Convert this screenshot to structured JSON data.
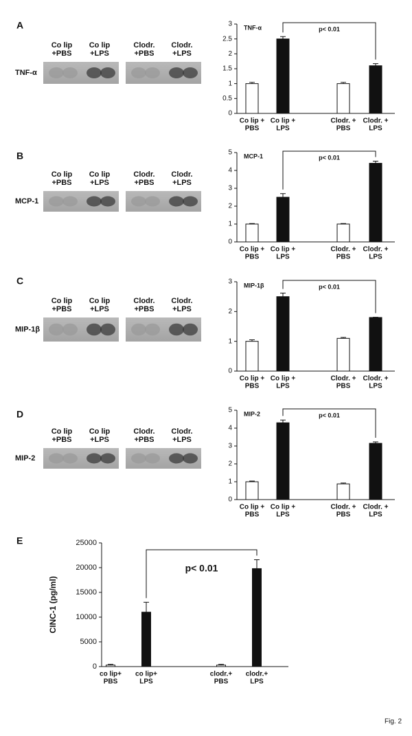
{
  "figure_label": "Fig. 2",
  "panels": [
    {
      "label": "A",
      "blot": {
        "row_label": "TNF-α",
        "columns": [
          [
            "Co lip",
            "+PBS"
          ],
          [
            "Co lip",
            "+LPS"
          ],
          [
            "Clodr.",
            "+PBS"
          ],
          [
            "Clodr.",
            "+LPS"
          ]
        ]
      }
    },
    {
      "label": "B",
      "blot": {
        "row_label": "MCP-1",
        "columns": [
          [
            "Co lip",
            "+PBS"
          ],
          [
            "Co lip",
            "+LPS"
          ],
          [
            "Clodr.",
            "+PBS"
          ],
          [
            "Clodr.",
            "+LPS"
          ]
        ]
      }
    },
    {
      "label": "C",
      "blot": {
        "row_label": "MIP-1β",
        "columns": [
          [
            "Co lip",
            "+PBS"
          ],
          [
            "Co lip",
            "+LPS"
          ],
          [
            "Clodr.",
            "+PBS"
          ],
          [
            "Clodr.",
            "+LPS"
          ]
        ]
      }
    },
    {
      "label": "D",
      "blot": {
        "row_label": "MIP-2",
        "columns": [
          [
            "Co lip",
            "+PBS"
          ],
          [
            "Co lip",
            "+LPS"
          ],
          [
            "Clodr.",
            "+PBS"
          ],
          [
            "Clodr.",
            "+LPS"
          ]
        ]
      }
    },
    {
      "label": "E"
    }
  ],
  "chart_data": [
    {
      "type": "bar",
      "title": "TNF-α",
      "annotation": "p< 0.01",
      "categories": [
        [
          "Co lip +",
          "PBS"
        ],
        [
          "Co lip +",
          "LPS"
        ],
        [
          "Clodr. +",
          "PBS"
        ],
        [
          "Clodr. +",
          "LPS"
        ]
      ],
      "values": [
        1,
        2.5,
        1,
        1.6
      ],
      "errors": [
        0.04,
        0.08,
        0.04,
        0.07
      ],
      "colors": [
        "#ffffff",
        "#111111",
        "#ffffff",
        "#111111"
      ],
      "ylim": [
        0,
        3
      ],
      "yticks": [
        0,
        0.5,
        1,
        1.5,
        2,
        2.5,
        3
      ]
    },
    {
      "type": "bar",
      "title": "MCP-1",
      "annotation": "p< 0.01",
      "categories": [
        [
          "Co lip +",
          "PBS"
        ],
        [
          "Co lip +",
          "LPS"
        ],
        [
          "Clodr. +",
          "PBS"
        ],
        [
          "Clodr. +",
          "LPS"
        ]
      ],
      "values": [
        1,
        2.5,
        1,
        4.4
      ],
      "errors": [
        0.03,
        0.2,
        0.03,
        0.12
      ],
      "colors": [
        "#ffffff",
        "#111111",
        "#ffffff",
        "#111111"
      ],
      "ylim": [
        0,
        5
      ],
      "yticks": [
        0,
        1,
        2,
        3,
        4,
        5
      ]
    },
    {
      "type": "bar",
      "title": "MIP-1β",
      "annotation": "p< 0.01",
      "categories": [
        [
          "Co lip +",
          "PBS"
        ],
        [
          "Co lip +",
          "LPS"
        ],
        [
          "Clodr. +",
          "PBS"
        ],
        [
          "Clodr. +",
          "LPS"
        ]
      ],
      "values": [
        1,
        2.5,
        1.1,
        1.8
      ],
      "errors": [
        0.05,
        0.12,
        0.03,
        0.01
      ],
      "colors": [
        "#ffffff",
        "#111111",
        "#ffffff",
        "#111111"
      ],
      "ylim": [
        0,
        3
      ],
      "yticks": [
        0,
        1,
        2,
        3
      ]
    },
    {
      "type": "bar",
      "title": "MIP-2",
      "annotation": "p< 0.01",
      "categories": [
        [
          "Co lip +",
          "PBS"
        ],
        [
          "Co lip +",
          "LPS"
        ],
        [
          "Clodr. +",
          "PBS"
        ],
        [
          "Clodr. +",
          "LPS"
        ]
      ],
      "values": [
        1,
        4.3,
        0.88,
        3.15
      ],
      "errors": [
        0.04,
        0.15,
        0.05,
        0.08
      ],
      "colors": [
        "#ffffff",
        "#111111",
        "#ffffff",
        "#111111"
      ],
      "ylim": [
        0,
        5
      ],
      "yticks": [
        0,
        1,
        2,
        3,
        4,
        5
      ]
    },
    {
      "type": "bar",
      "annotation": "p< 0.01",
      "y_label": "CINC-1  (pg/ml)",
      "categories": [
        [
          "co lip+",
          "PBS"
        ],
        [
          "co lip+",
          "LPS"
        ],
        [
          "clodr.+",
          "PBS"
        ],
        [
          "clodr.+",
          "LPS"
        ]
      ],
      "values": [
        300,
        11000,
        300,
        19800
      ],
      "errors": [
        150,
        2000,
        150,
        1800
      ],
      "colors": [
        "#ffffff",
        "#111111",
        "#ffffff",
        "#111111"
      ],
      "ylim": [
        0,
        25000
      ],
      "yticks": [
        0,
        5000,
        10000,
        15000,
        20000,
        25000
      ]
    }
  ]
}
